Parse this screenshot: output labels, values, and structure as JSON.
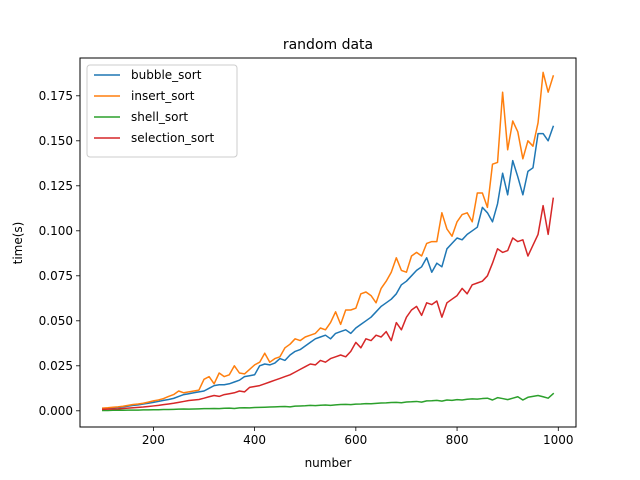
{
  "chart_data": {
    "type": "line",
    "title": "random data",
    "xlabel": "number",
    "ylabel": "time(s)",
    "xlim": [
      55,
      1035
    ],
    "ylim": [
      -0.009,
      0.196
    ],
    "xticks": [
      200,
      400,
      600,
      800,
      1000
    ],
    "xtick_labels": [
      "200",
      "400",
      "600",
      "800",
      "1000"
    ],
    "yticks": [
      0.0,
      0.025,
      0.05,
      0.075,
      0.1,
      0.125,
      0.15,
      0.175
    ],
    "ytick_labels": [
      "0.000",
      "0.025",
      "0.050",
      "0.075",
      "0.100",
      "0.125",
      "0.150",
      "0.175"
    ],
    "grid": false,
    "legend_position": "upper-left",
    "x": [
      100,
      110,
      120,
      130,
      140,
      150,
      160,
      170,
      180,
      190,
      200,
      210,
      220,
      230,
      240,
      250,
      260,
      270,
      280,
      290,
      300,
      310,
      320,
      330,
      340,
      350,
      360,
      370,
      380,
      390,
      400,
      410,
      420,
      430,
      440,
      450,
      460,
      470,
      480,
      490,
      500,
      510,
      520,
      530,
      540,
      550,
      560,
      570,
      580,
      590,
      600,
      610,
      620,
      630,
      640,
      650,
      660,
      670,
      680,
      690,
      700,
      710,
      720,
      730,
      740,
      750,
      760,
      770,
      780,
      790,
      800,
      810,
      820,
      830,
      840,
      850,
      860,
      870,
      880,
      890,
      900,
      910,
      920,
      930,
      940,
      950,
      960,
      970,
      980,
      990
    ],
    "series": [
      {
        "name": "bubble_sort",
        "color": "#1f77b4",
        "values": [
          0.0012,
          0.0014,
          0.0016,
          0.0018,
          0.0022,
          0.0026,
          0.003,
          0.0033,
          0.0038,
          0.0042,
          0.0047,
          0.0052,
          0.0058,
          0.0063,
          0.0069,
          0.008,
          0.009,
          0.0095,
          0.01,
          0.0105,
          0.011,
          0.0125,
          0.014,
          0.0145,
          0.0145,
          0.015,
          0.016,
          0.017,
          0.019,
          0.0195,
          0.02,
          0.025,
          0.026,
          0.0255,
          0.0265,
          0.029,
          0.028,
          0.031,
          0.033,
          0.034,
          0.036,
          0.038,
          0.04,
          0.041,
          0.042,
          0.04,
          0.043,
          0.044,
          0.045,
          0.043,
          0.046,
          0.048,
          0.05,
          0.052,
          0.055,
          0.058,
          0.06,
          0.062,
          0.065,
          0.07,
          0.072,
          0.075,
          0.078,
          0.08,
          0.085,
          0.077,
          0.082,
          0.08,
          0.09,
          0.093,
          0.096,
          0.095,
          0.098,
          0.1,
          0.102,
          0.113,
          0.11,
          0.105,
          0.115,
          0.132,
          0.12,
          0.139,
          0.13,
          0.12,
          0.133,
          0.135,
          0.154,
          0.154,
          0.15,
          0.158
        ]
      },
      {
        "name": "insert_sort",
        "color": "#ff7f0e",
        "values": [
          0.0015,
          0.0017,
          0.002,
          0.0022,
          0.0025,
          0.003,
          0.0035,
          0.0038,
          0.0042,
          0.0048,
          0.0055,
          0.006,
          0.0068,
          0.008,
          0.009,
          0.011,
          0.01,
          0.0105,
          0.011,
          0.0115,
          0.0175,
          0.019,
          0.015,
          0.021,
          0.019,
          0.02,
          0.025,
          0.021,
          0.0205,
          0.023,
          0.0255,
          0.027,
          0.032,
          0.027,
          0.029,
          0.03,
          0.035,
          0.037,
          0.04,
          0.039,
          0.041,
          0.042,
          0.043,
          0.046,
          0.045,
          0.049,
          0.055,
          0.048,
          0.056,
          0.056,
          0.057,
          0.065,
          0.066,
          0.064,
          0.06,
          0.068,
          0.072,
          0.077,
          0.085,
          0.078,
          0.077,
          0.086,
          0.088,
          0.086,
          0.093,
          0.094,
          0.094,
          0.11,
          0.101,
          0.097,
          0.105,
          0.109,
          0.11,
          0.105,
          0.121,
          0.121,
          0.113,
          0.137,
          0.138,
          0.177,
          0.145,
          0.161,
          0.155,
          0.14,
          0.15,
          0.147,
          0.16,
          0.188,
          0.177,
          0.186
        ]
      },
      {
        "name": "shell_sort",
        "color": "#2ca02c",
        "values": [
          0.0002,
          0.0002,
          0.0003,
          0.0003,
          0.0003,
          0.0004,
          0.0004,
          0.0004,
          0.0005,
          0.0005,
          0.0006,
          0.0006,
          0.0007,
          0.0007,
          0.0008,
          0.0009,
          0.001,
          0.0009,
          0.001,
          0.0011,
          0.0012,
          0.0012,
          0.0013,
          0.0012,
          0.0014,
          0.0015,
          0.0013,
          0.0016,
          0.0017,
          0.0016,
          0.0018,
          0.0019,
          0.002,
          0.0021,
          0.0022,
          0.0023,
          0.0024,
          0.0022,
          0.0026,
          0.0027,
          0.0028,
          0.003,
          0.0029,
          0.0031,
          0.0032,
          0.003,
          0.0033,
          0.0035,
          0.0036,
          0.0034,
          0.0037,
          0.0038,
          0.004,
          0.0039,
          0.0041,
          0.0043,
          0.0044,
          0.0046,
          0.0047,
          0.0045,
          0.0049,
          0.005,
          0.0052,
          0.0048,
          0.0055,
          0.0056,
          0.0058,
          0.0054,
          0.006,
          0.0058,
          0.0062,
          0.006,
          0.0064,
          0.0066,
          0.0065,
          0.0068,
          0.007,
          0.006,
          0.0073,
          0.0068,
          0.0062,
          0.007,
          0.0078,
          0.006,
          0.0075,
          0.008,
          0.0085,
          0.0078,
          0.007,
          0.0095
        ]
      },
      {
        "name": "selection_sort",
        "color": "#d62728",
        "values": [
          0.0008,
          0.0009,
          0.001,
          0.0011,
          0.0013,
          0.0015,
          0.0017,
          0.0019,
          0.0021,
          0.0024,
          0.0027,
          0.003,
          0.0034,
          0.0038,
          0.0042,
          0.0047,
          0.0052,
          0.0057,
          0.006,
          0.0063,
          0.007,
          0.0078,
          0.0085,
          0.008,
          0.009,
          0.0095,
          0.01,
          0.011,
          0.0105,
          0.013,
          0.0135,
          0.014,
          0.015,
          0.016,
          0.017,
          0.018,
          0.019,
          0.02,
          0.0215,
          0.023,
          0.0245,
          0.026,
          0.0255,
          0.028,
          0.027,
          0.029,
          0.03,
          0.031,
          0.03,
          0.033,
          0.038,
          0.035,
          0.04,
          0.039,
          0.042,
          0.041,
          0.044,
          0.039,
          0.049,
          0.045,
          0.052,
          0.056,
          0.058,
          0.053,
          0.06,
          0.059,
          0.061,
          0.052,
          0.06,
          0.062,
          0.064,
          0.068,
          0.065,
          0.07,
          0.071,
          0.072,
          0.075,
          0.082,
          0.09,
          0.088,
          0.089,
          0.096,
          0.094,
          0.095,
          0.086,
          0.092,
          0.098,
          0.114,
          0.098,
          0.118
        ]
      }
    ]
  }
}
